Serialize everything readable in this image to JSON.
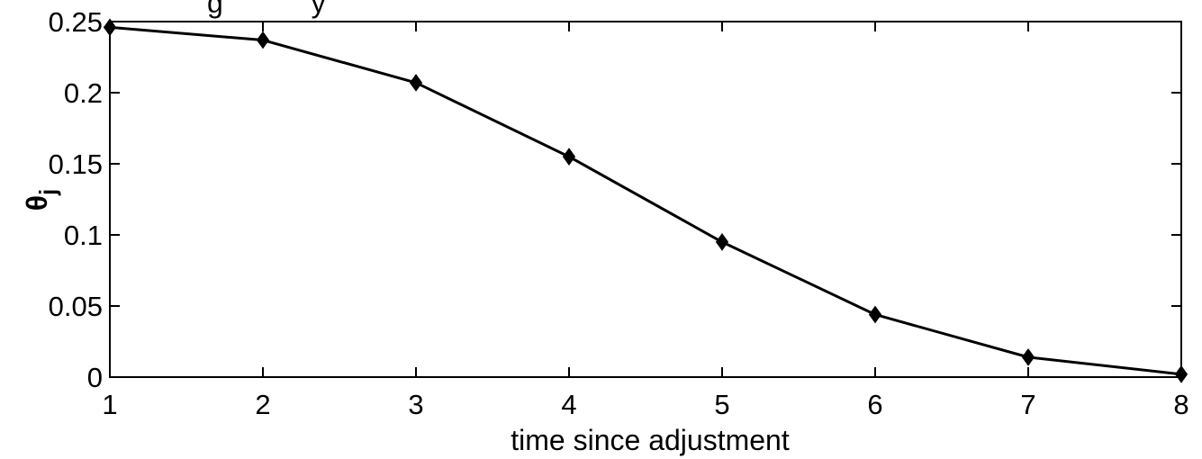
{
  "chart_data": {
    "type": "line",
    "title": "g           y",
    "xlabel": "time since adjustment",
    "ylabel": "θ",
    "ylabel_subscript": "j",
    "xlim": [
      1,
      8
    ],
    "ylim": [
      0,
      0.25
    ],
    "x_ticks": [
      1,
      2,
      3,
      4,
      5,
      6,
      7,
      8
    ],
    "x_tick_labels": [
      "1",
      "2",
      "3",
      "4",
      "5",
      "6",
      "7",
      "8"
    ],
    "y_ticks": [
      0,
      0.05,
      0.1,
      0.15,
      0.2,
      0.25
    ],
    "y_tick_labels": [
      "0",
      "0.05",
      "0.1",
      "0.15",
      "0.2",
      "0.25"
    ],
    "grid": false,
    "series": [
      {
        "marker": "diamond",
        "color": "#000000",
        "x": [
          1,
          2,
          3,
          4,
          5,
          6,
          7,
          8
        ],
        "y": [
          0.246,
          0.237,
          0.207,
          0.155,
          0.095,
          0.044,
          0.014,
          0.002
        ]
      }
    ]
  }
}
